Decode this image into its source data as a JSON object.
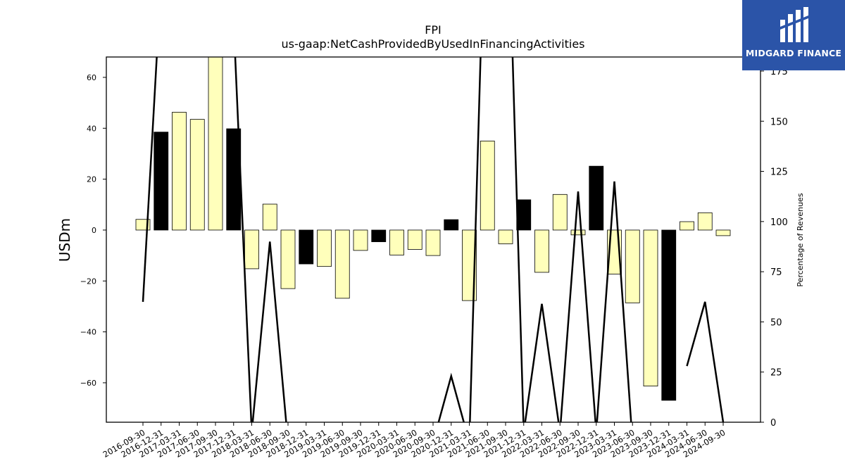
{
  "chart_data": {
    "type": "bar",
    "title": "FPI",
    "subtitle": "us-gaap:NetCashProvidedByUsedInFinancingActivities",
    "ylabel": "USDm",
    "y2label": "Percentage of Revenues",
    "ylim": [
      -75.5,
      68
    ],
    "y2lim": [
      0,
      182
    ],
    "yticks": [
      -60,
      -40,
      -20,
      0,
      20,
      40,
      60
    ],
    "y2ticks": [
      0,
      25,
      50,
      75,
      100,
      125,
      150,
      175
    ],
    "categories": [
      "2016-09-30",
      "2016-12-31",
      "2017-03-31",
      "2017-06-30",
      "2017-09-30",
      "2017-12-31",
      "2018-03-31",
      "2018-06-30",
      "2018-09-30",
      "2018-12-31",
      "2019-03-31",
      "2019-06-30",
      "2019-09-30",
      "2019-12-31",
      "2020-03-31",
      "2020-06-30",
      "2020-09-30",
      "2020-12-31",
      "2021-03-31",
      "2021-06-30",
      "2021-09-30",
      "2021-12-31",
      "2022-03-31",
      "2022-06-30",
      "2022-09-30",
      "2022-12-31",
      "2023-03-31",
      "2023-06-30",
      "2023-09-30",
      "2023-12-31",
      "2024-03-31",
      "2024-06-30",
      "2024-09-30"
    ],
    "values": [
      4.2,
      38.5,
      46.3,
      43.5,
      70,
      39.8,
      -15.2,
      10.2,
      -23,
      -13.3,
      -14.3,
      -26.8,
      -8,
      -4.6,
      -9.8,
      -7.6,
      -10,
      4.1,
      -27.7,
      35,
      -5.4,
      11.9,
      -16.6,
      14,
      -1.9,
      25.1,
      -17.3,
      -28.6,
      -61.3,
      -66.9,
      3.3,
      6.8,
      -2.2
    ],
    "bar_colors": [
      "#ffffbb",
      "#000000",
      "#ffffbb",
      "#ffffbb",
      "#ffffbb",
      "#000000",
      "#ffffbb",
      "#ffffbb",
      "#ffffbb",
      "#000000",
      "#ffffbb",
      "#ffffbb",
      "#ffffbb",
      "#000000",
      "#ffffbb",
      "#ffffbb",
      "#ffffbb",
      "#000000",
      "#ffffbb",
      "#ffffbb",
      "#ffffbb",
      "#000000",
      "#ffffbb",
      "#ffffbb",
      "#ffffbb",
      "#000000",
      "#ffffbb",
      "#ffffbb",
      "#ffffbb",
      "#000000",
      "#ffffbb",
      "#ffffbb",
      "#ffffbb"
    ],
    "line_values": [
      60,
      220,
      null,
      null,
      null,
      200,
      -5,
      90,
      -10,
      null,
      null,
      null,
      null,
      null,
      null,
      null,
      -10,
      23,
      -10,
      300,
      300,
      -5,
      59,
      -5,
      115,
      -5,
      120,
      -10,
      null,
      null,
      28,
      60,
      0
    ],
    "grid": false
  },
  "logo": {
    "text": "MIDGARD FINANCE"
  }
}
